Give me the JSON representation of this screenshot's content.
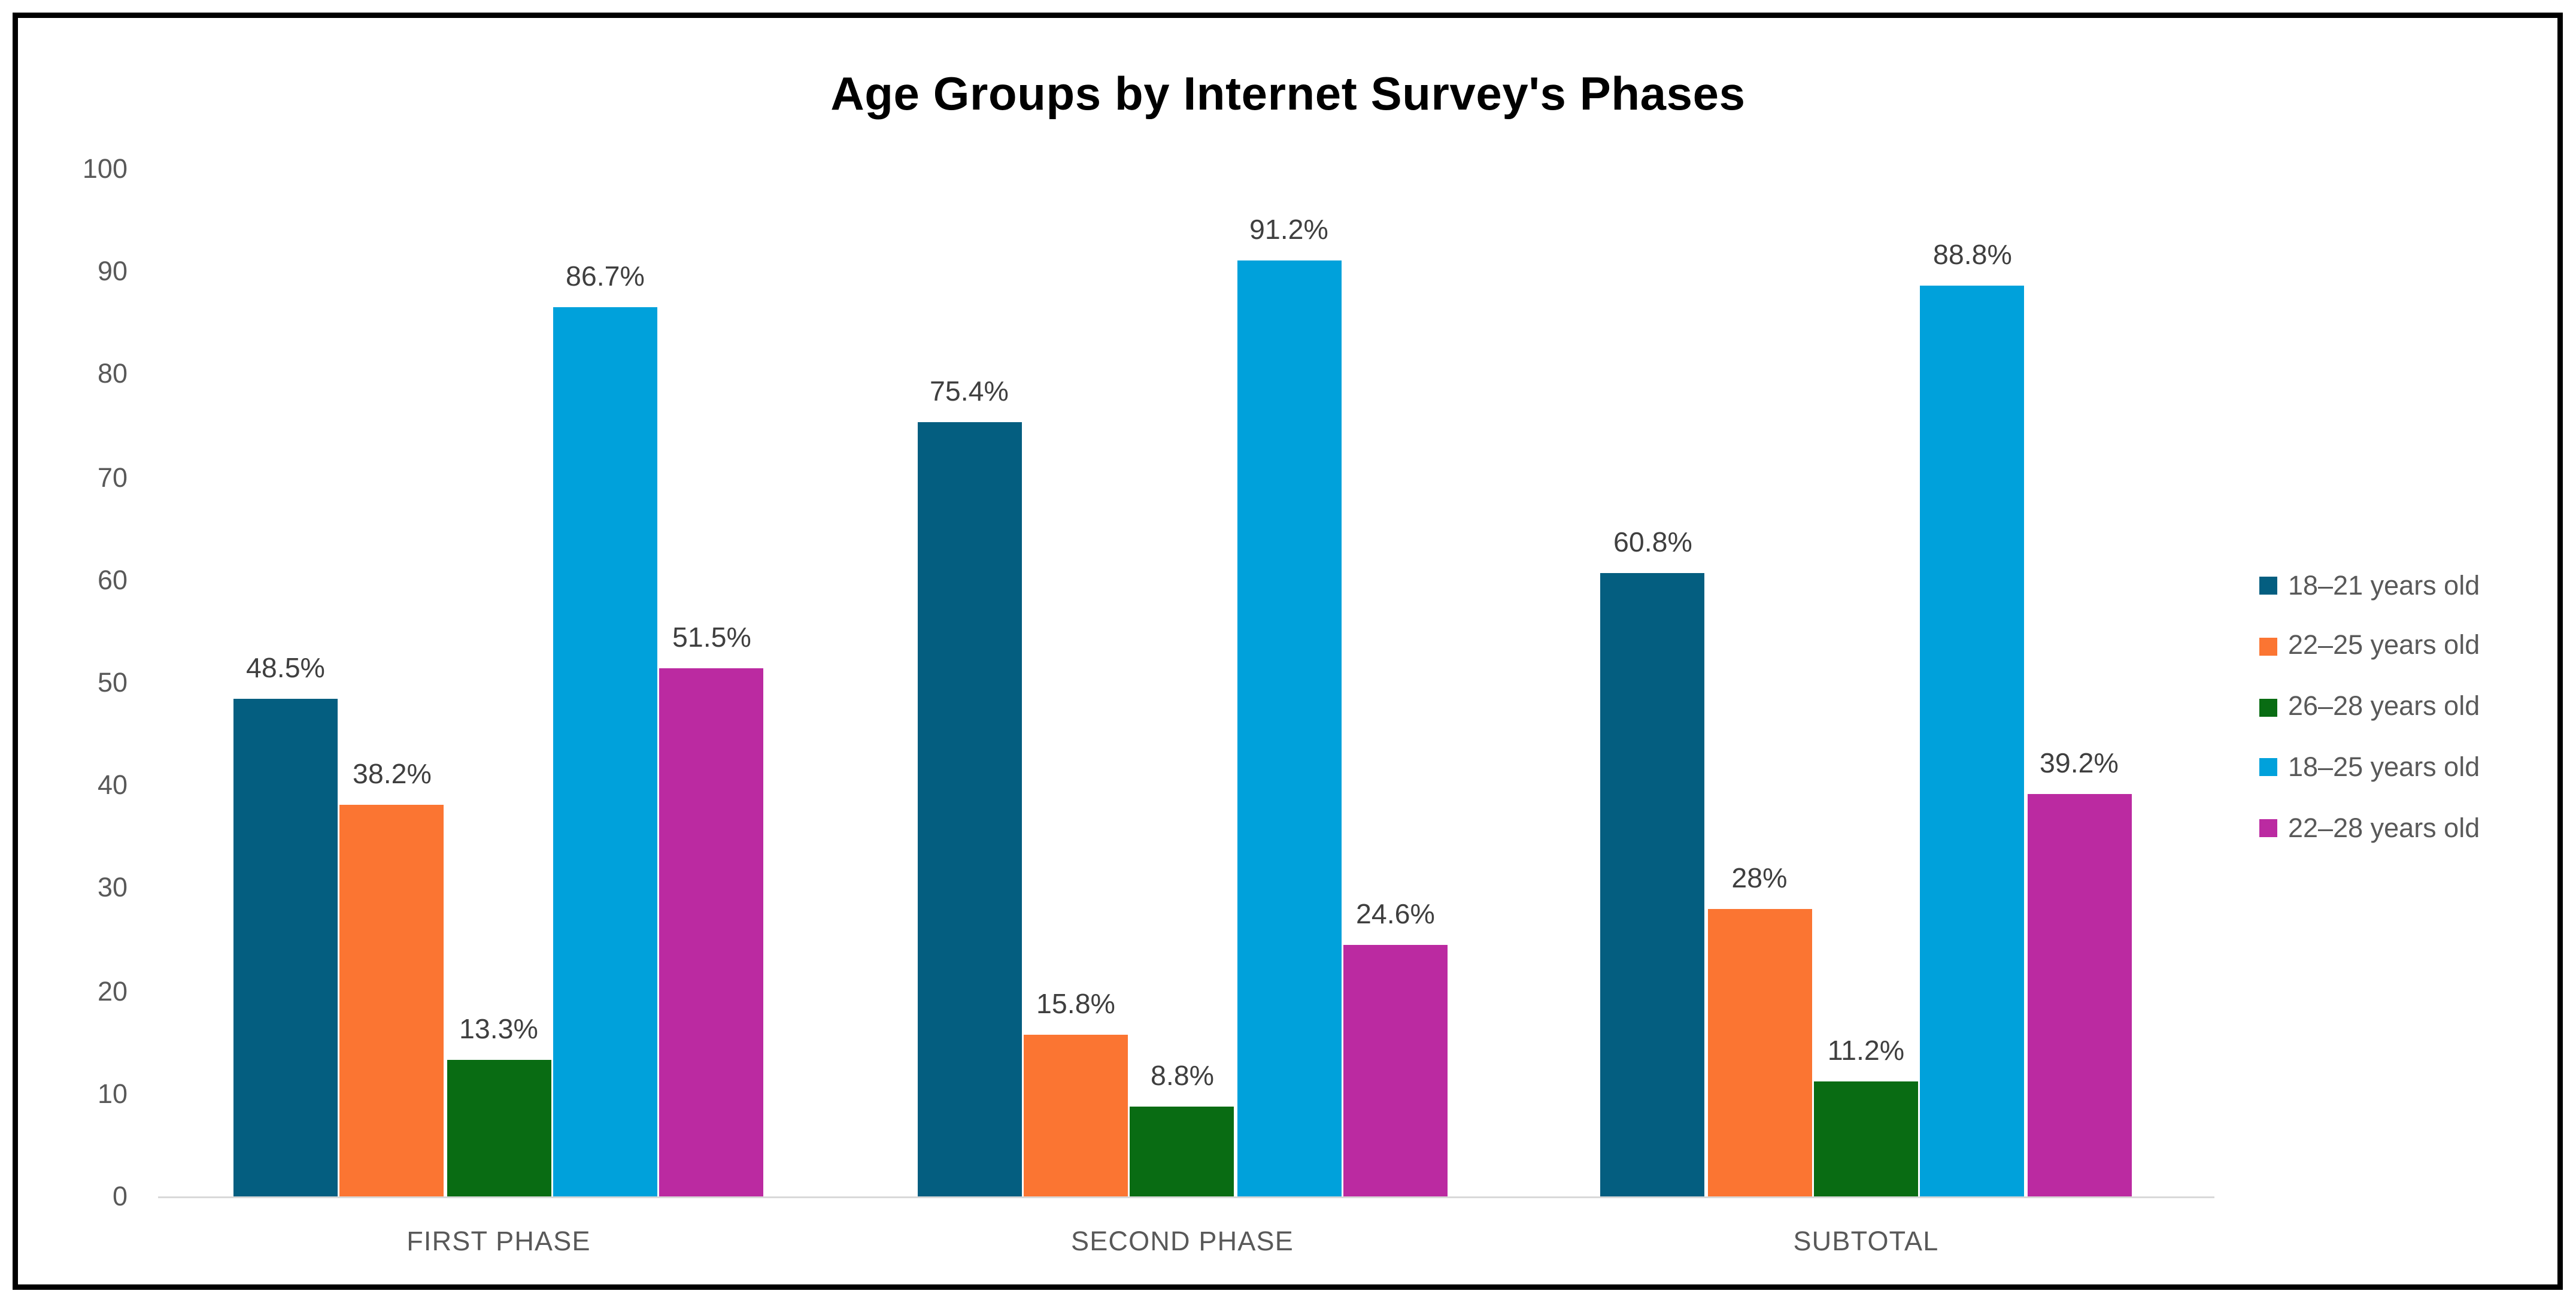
{
  "chart_data": {
    "type": "bar",
    "title": "Age Groups by Internet Survey's Phases",
    "categories": [
      "FIRST PHASE",
      "SECOND PHASE",
      "SUBTOTAL"
    ],
    "series": [
      {
        "name": "18–21 years old",
        "color": "#045E80",
        "values": [
          48.5,
          75.4,
          60.8
        ],
        "labels": [
          "48.5%",
          "75.4%",
          "60.8%"
        ]
      },
      {
        "name": "22–25 years old",
        "color": "#FB7532",
        "values": [
          38.2,
          15.8,
          28.0
        ],
        "labels": [
          "38.2%",
          "15.8%",
          "28%"
        ]
      },
      {
        "name": "26–28 years old",
        "color": "#096C13",
        "values": [
          13.3,
          8.8,
          11.2
        ],
        "labels": [
          "13.3%",
          "8.8%",
          "11.2%"
        ]
      },
      {
        "name": "18–25 years old",
        "color": "#00A1DB",
        "values": [
          86.7,
          91.2,
          88.8
        ],
        "labels": [
          "86.7%",
          "91.2%",
          "88.8%"
        ]
      },
      {
        "name": "22–28 years old",
        "color": "#BB2AA1",
        "values": [
          51.5,
          24.6,
          39.2
        ],
        "labels": [
          "51.5%",
          "24.6%",
          "39.2%"
        ]
      }
    ],
    "y_axis": {
      "min": 0,
      "max": 100,
      "step": 10,
      "tick_labels": [
        "0",
        "10",
        "20",
        "30",
        "40",
        "50",
        "60",
        "70",
        "80",
        "90",
        "100"
      ]
    },
    "legend_position": "right",
    "grid": false,
    "data_labels_shown": true,
    "colors": {
      "axis_line": "#D9D9D9",
      "tick_text": "#595959",
      "category_text": "#595959",
      "legend_text": "#595959",
      "data_label_text": "#3F3F3F",
      "title_text": "#000000",
      "frame": "#000000",
      "background": "#FFFFFF"
    }
  }
}
